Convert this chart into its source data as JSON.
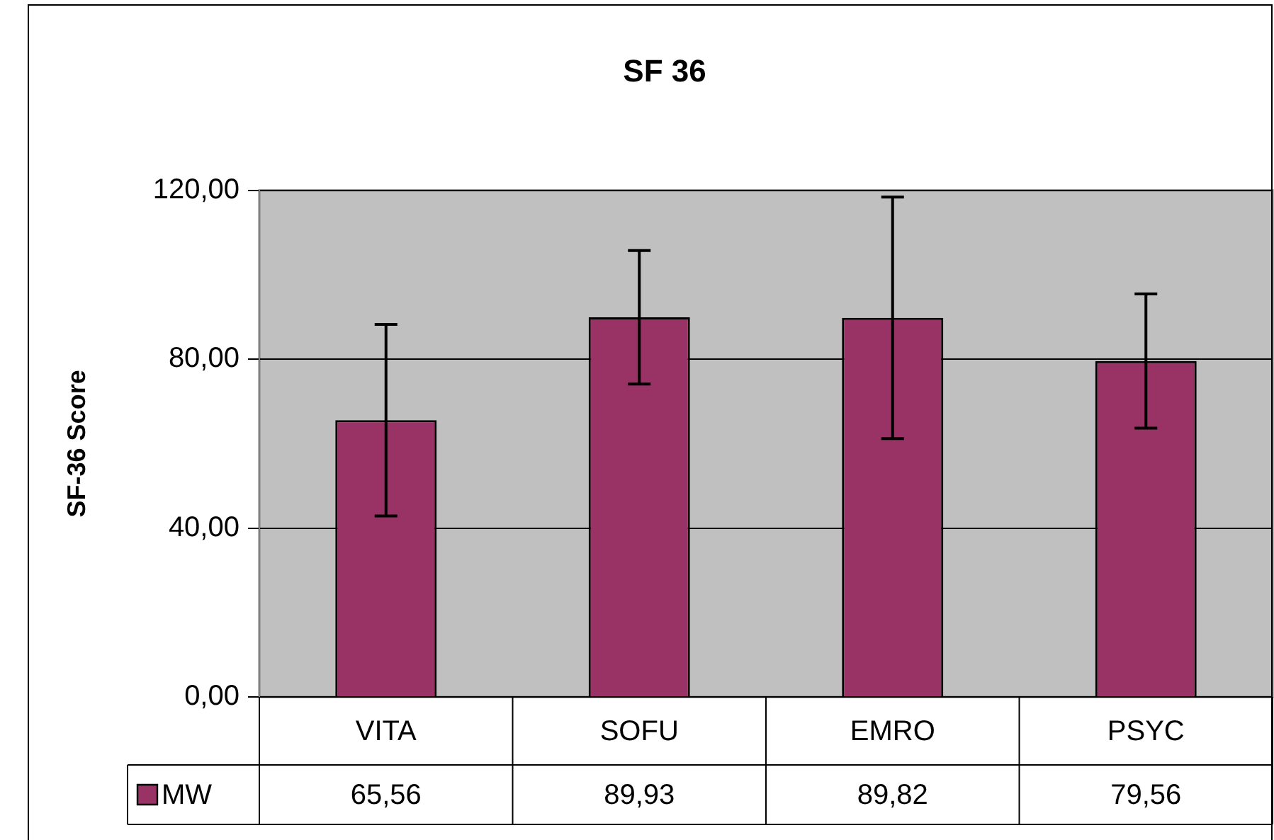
{
  "chart_data": {
    "type": "bar",
    "title": "SF 36",
    "ylabel": "SF-36 Score",
    "categories": [
      "VITA",
      "SOFU",
      "EMRO",
      "PSYC"
    ],
    "series": [
      {
        "name": "MW",
        "color": "#993366",
        "values": [
          65.56,
          89.93,
          89.82,
          79.56
        ],
        "value_labels": [
          "65,56",
          "89,93",
          "89,82",
          "79,56"
        ],
        "errors": [
          22.7,
          15.8,
          28.6,
          15.9
        ]
      }
    ],
    "ylim": [
      0,
      120
    ],
    "yticks": [
      {
        "value": 0,
        "label": "0,00"
      },
      {
        "value": 40,
        "label": "40,00"
      },
      {
        "value": 80,
        "label": "80,00"
      },
      {
        "value": 120,
        "label": "120,00"
      }
    ],
    "grid": "y",
    "legend": "bottom"
  }
}
